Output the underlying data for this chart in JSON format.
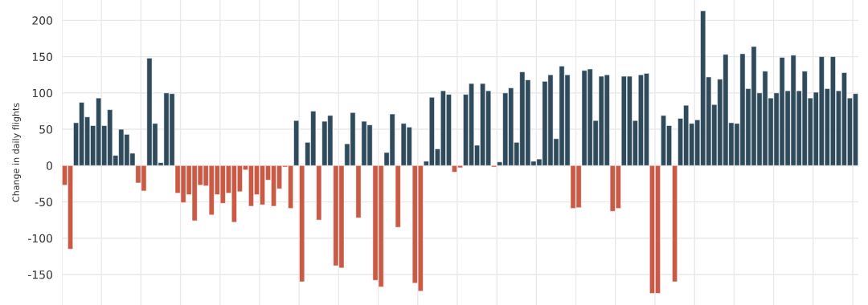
{
  "chart_data": {
    "type": "bar",
    "ylabel": "Change in daily flights",
    "categories": [
      null,
      null,
      null,
      null,
      null,
      null,
      null,
      null,
      null,
      null,
      null,
      null,
      null,
      null,
      null,
      null,
      null,
      null,
      null,
      null,
      null,
      null,
      null,
      null,
      null,
      null,
      null,
      null,
      null,
      null,
      null,
      null,
      null,
      null,
      null,
      null,
      null,
      null,
      null,
      null,
      null,
      null,
      null,
      null,
      null,
      null,
      null,
      null,
      null,
      null,
      null,
      null,
      null,
      null,
      null,
      null,
      null,
      null,
      null,
      null,
      null,
      null,
      null,
      null,
      null,
      null,
      null,
      null,
      null,
      null,
      null,
      null,
      null,
      null,
      null,
      null,
      null,
      null,
      null,
      null,
      null,
      null,
      null,
      null,
      null,
      null,
      null,
      null,
      null,
      null,
      null,
      null,
      null,
      null,
      null,
      null,
      null,
      null,
      null,
      null,
      null,
      null,
      null,
      null,
      null,
      null,
      null,
      null,
      null,
      null,
      null,
      null,
      null,
      null,
      null,
      null,
      null,
      null,
      null,
      null,
      null,
      null,
      null,
      null,
      null,
      null,
      null,
      null,
      null,
      null,
      null,
      null,
      null,
      null,
      null,
      null,
      null,
      null,
      null,
      null,
      null
    ],
    "values": [
      -27,
      -115,
      59,
      87,
      67,
      55,
      93,
      55,
      77,
      14,
      50,
      43,
      17,
      -24,
      -35,
      148,
      58,
      4,
      100,
      99,
      -38,
      -51,
      -40,
      -76,
      -27,
      -28,
      -68,
      -40,
      -52,
      -38,
      -78,
      -36,
      -6,
      -56,
      -40,
      -54,
      -20,
      -56,
      -32,
      -2,
      -59,
      62,
      -160,
      32,
      75,
      -75,
      61,
      69,
      -138,
      -141,
      30,
      73,
      -72,
      61,
      56,
      -158,
      -167,
      18,
      71,
      -85,
      58,
      53,
      -162,
      -173,
      6,
      94,
      23,
      103,
      98,
      -9,
      -3,
      98,
      113,
      28,
      113,
      103,
      -2,
      5,
      100,
      107,
      32,
      129,
      118,
      6,
      9,
      116,
      125,
      37,
      137,
      125,
      -59,
      -58,
      131,
      133,
      62,
      123,
      125,
      -63,
      -59,
      123,
      123,
      62,
      125,
      127,
      -176,
      -176,
      69,
      55,
      -160,
      65,
      83,
      58,
      63,
      213,
      122,
      84,
      119,
      153,
      59,
      58,
      154,
      106,
      164,
      100,
      130,
      93,
      100,
      149,
      103,
      152,
      103,
      130,
      93,
      101,
      150,
      106,
      150,
      103,
      128,
      93,
      99
    ],
    "colors": [
      "#c95a45",
      "#c95a45",
      "#2e4a5b",
      "#2e4a5b",
      "#2e4a5b",
      "#2e4a5b",
      "#2e4a5b",
      "#2e4a5b",
      "#2e4a5b",
      "#2e4a5b",
      "#2e4a5b",
      "#2e4a5b",
      "#2e4a5b",
      "#c95a45",
      "#c95a45",
      "#2e4a5b",
      "#2e4a5b",
      "#2e4a5b",
      "#2e4a5b",
      "#2e4a5b",
      "#c95a45",
      "#c95a45",
      "#c95a45",
      "#c95a45",
      "#c95a45",
      "#c95a45",
      "#c95a45",
      "#c95a45",
      "#c95a45",
      "#c95a45",
      "#c95a45",
      "#c95a45",
      "#c95a45",
      "#c95a45",
      "#c95a45",
      "#c95a45",
      "#c95a45",
      "#c95a45",
      "#c95a45",
      "#c95a45",
      "#c95a45",
      "#2e4a5b",
      "#c95a45",
      "#2e4a5b",
      "#2e4a5b",
      "#c95a45",
      "#2e4a5b",
      "#2e4a5b",
      "#c95a45",
      "#c95a45",
      "#2e4a5b",
      "#2e4a5b",
      "#c95a45",
      "#2e4a5b",
      "#2e4a5b",
      "#c95a45",
      "#c95a45",
      "#2e4a5b",
      "#2e4a5b",
      "#c95a45",
      "#2e4a5b",
      "#2e4a5b",
      "#c95a45",
      "#c95a45",
      "#2e4a5b",
      "#2e4a5b",
      "#2e4a5b",
      "#2e4a5b",
      "#2e4a5b",
      "#c95a45",
      "#c95a45",
      "#2e4a5b",
      "#2e4a5b",
      "#2e4a5b",
      "#2e4a5b",
      "#2e4a5b",
      "#c95a45",
      "#2e4a5b",
      "#2e4a5b",
      "#2e4a5b",
      "#2e4a5b",
      "#2e4a5b",
      "#2e4a5b",
      "#2e4a5b",
      "#2e4a5b",
      "#2e4a5b",
      "#2e4a5b",
      "#2e4a5b",
      "#2e4a5b",
      "#2e4a5b",
      "#c95a45",
      "#c95a45",
      "#2e4a5b",
      "#2e4a5b",
      "#2e4a5b",
      "#2e4a5b",
      "#2e4a5b",
      "#c95a45",
      "#c95a45",
      "#2e4a5b",
      "#2e4a5b",
      "#2e4a5b",
      "#2e4a5b",
      "#2e4a5b",
      "#c95a45",
      "#c95a45",
      "#2e4a5b",
      "#2e4a5b",
      "#c95a45",
      "#2e4a5b",
      "#2e4a5b",
      "#2e4a5b",
      "#2e4a5b",
      "#2e4a5b",
      "#2e4a5b",
      "#2e4a5b",
      "#2e4a5b",
      "#2e4a5b",
      "#2e4a5b",
      "#2e4a5b",
      "#2e4a5b",
      "#2e4a5b",
      "#2e4a5b",
      "#2e4a5b",
      "#2e4a5b",
      "#2e4a5b",
      "#2e4a5b",
      "#2e4a5b",
      "#2e4a5b",
      "#2e4a5b",
      "#2e4a5b",
      "#2e4a5b",
      "#2e4a5b",
      "#2e4a5b",
      "#2e4a5b",
      "#2e4a5b",
      "#2e4a5b",
      "#2e4a5b",
      "#2e4a5b",
      "#2e4a5b",
      "#2e4a5b"
    ],
    "ylim": [
      -192,
      228
    ],
    "yticks": [
      {
        "value": -150,
        "label": "-150"
      },
      {
        "value": -100,
        "label": "-100"
      },
      {
        "value": -50,
        "label": "-50"
      },
      0,
      50,
      100,
      150,
      200
    ],
    "grid": true
  }
}
